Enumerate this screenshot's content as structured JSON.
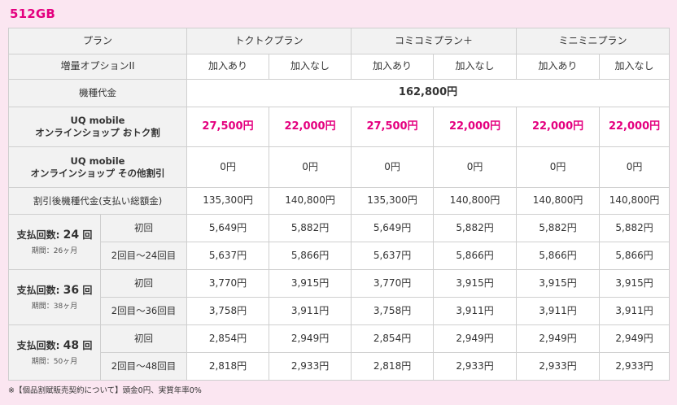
{
  "title": "512GB",
  "header": {
    "plan_label": "プラン",
    "plans": [
      "トクトクプラン",
      "コミコミプラン＋",
      "ミニミニプラン"
    ],
    "option_label": "増量オプションII",
    "option_with": "加入あり",
    "option_without": "加入なし"
  },
  "device_price": {
    "label": "機種代金",
    "value": "162,800円"
  },
  "discount_otoku": {
    "label_line1": "UQ mobile",
    "label_line2": "オンラインショップ おトク割",
    "values": [
      "27,500円",
      "22,000円",
      "27,500円",
      "22,000円",
      "22,000円",
      "22,000円"
    ]
  },
  "discount_other": {
    "label_line1": "UQ mobile",
    "label_line2": "オンラインショップ その他割引",
    "values": [
      "0円",
      "0円",
      "0円",
      "0円",
      "0円",
      "0円"
    ]
  },
  "after_discount": {
    "label": "割引後機種代金(支払い総額金)",
    "values": [
      "135,300円",
      "140,800円",
      "135,300円",
      "140,800円",
      "140,800円",
      "140,800円"
    ]
  },
  "installments": [
    {
      "prefix": "支払回数:",
      "count": "24",
      "suffix": "回",
      "period": "期間：26ヶ月",
      "first_label": "初回",
      "first_values": [
        "5,649円",
        "5,882円",
        "5,649円",
        "5,882円",
        "5,882円",
        "5,882円"
      ],
      "rest_label": "2回目〜24回目",
      "rest_values": [
        "5,637円",
        "5,866円",
        "5,637円",
        "5,866円",
        "5,866円",
        "5,866円"
      ]
    },
    {
      "prefix": "支払回数:",
      "count": "36",
      "suffix": "回",
      "period": "期間：38ヶ月",
      "first_label": "初回",
      "first_values": [
        "3,770円",
        "3,915円",
        "3,770円",
        "3,915円",
        "3,915円",
        "3,915円"
      ],
      "rest_label": "2回目〜36回目",
      "rest_values": [
        "3,758円",
        "3,911円",
        "3,758円",
        "3,911円",
        "3,911円",
        "3,911円"
      ]
    },
    {
      "prefix": "支払回数:",
      "count": "48",
      "suffix": "回",
      "period": "期間：50ヶ月",
      "first_label": "初回",
      "first_values": [
        "2,854円",
        "2,949円",
        "2,854円",
        "2,949円",
        "2,949円",
        "2,949円"
      ],
      "rest_label": "2回目〜48回目",
      "rest_values": [
        "2,818円",
        "2,933円",
        "2,818円",
        "2,933円",
        "2,933円",
        "2,933円"
      ]
    }
  ],
  "note": "※【個品割賦販売契約について】頭金0円、実質年率0%",
  "colors": {
    "accent": "#e4007f",
    "background": "#fbe6f1",
    "label_bg": "#f2f2f2"
  }
}
